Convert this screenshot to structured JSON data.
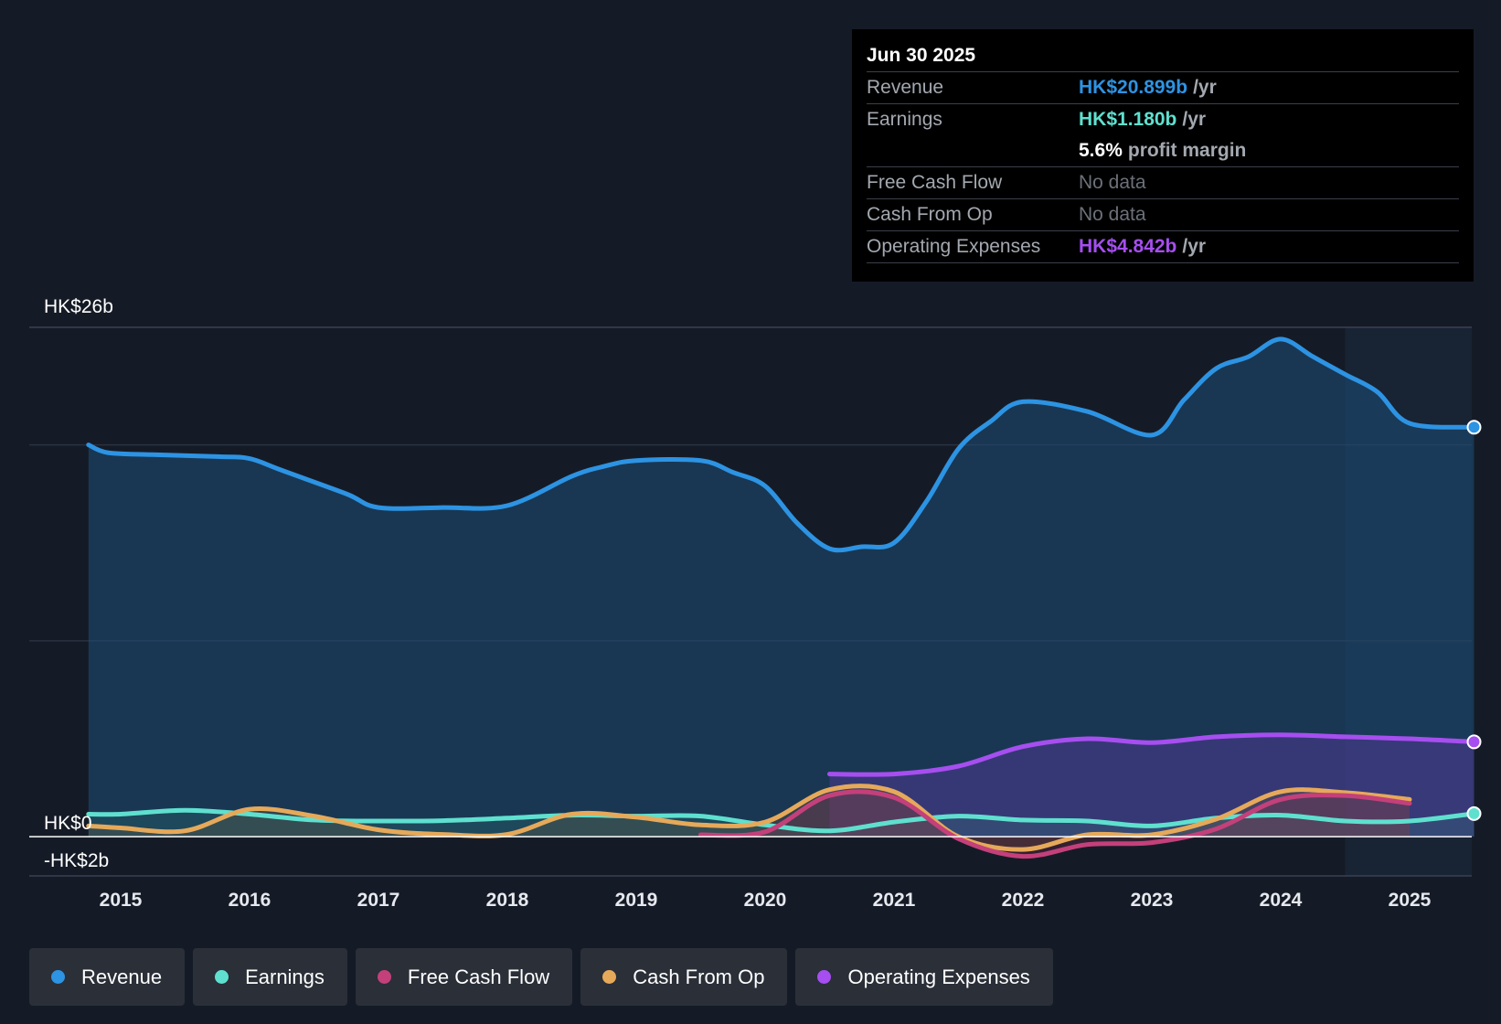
{
  "chart_data": {
    "type": "area",
    "currency": "HK$",
    "y_axis": {
      "top_label": "HK$26b",
      "zero_label": "HK$0",
      "bottom_label": "-HK$2b",
      "ylim": [
        -2,
        26
      ],
      "gridlines": [
        20,
        10
      ]
    },
    "x_axis": {
      "tick_labels": [
        "2015",
        "2016",
        "2017",
        "2018",
        "2019",
        "2020",
        "2021",
        "2022",
        "2023",
        "2024",
        "2025"
      ],
      "xlim": [
        2014.55,
        2025.5
      ]
    },
    "forecast_band_start": 2024.5,
    "series": [
      {
        "name": "Revenue",
        "color": "#2d93e3",
        "fill": "#1e4f78",
        "fill_opacity": 0.55,
        "end_marker": true,
        "points": [
          [
            2014.75,
            20.0
          ],
          [
            2014.9,
            19.6
          ],
          [
            2015.25,
            19.5
          ],
          [
            2015.75,
            19.4
          ],
          [
            2016.0,
            19.3
          ],
          [
            2016.25,
            18.7
          ],
          [
            2016.75,
            17.5
          ],
          [
            2017.0,
            16.8
          ],
          [
            2017.5,
            16.8
          ],
          [
            2018.0,
            16.9
          ],
          [
            2018.5,
            18.4
          ],
          [
            2018.75,
            18.9
          ],
          [
            2019.0,
            19.2
          ],
          [
            2019.5,
            19.2
          ],
          [
            2019.75,
            18.6
          ],
          [
            2020.0,
            17.9
          ],
          [
            2020.25,
            16.0
          ],
          [
            2020.5,
            14.7
          ],
          [
            2020.75,
            14.8
          ],
          [
            2021.0,
            15.0
          ],
          [
            2021.25,
            17.1
          ],
          [
            2021.5,
            19.8
          ],
          [
            2021.75,
            21.2
          ],
          [
            2022.0,
            22.2
          ],
          [
            2022.5,
            21.7
          ],
          [
            2023.0,
            20.5
          ],
          [
            2023.25,
            22.3
          ],
          [
            2023.5,
            23.9
          ],
          [
            2023.75,
            24.5
          ],
          [
            2024.0,
            25.4
          ],
          [
            2024.25,
            24.5
          ],
          [
            2024.5,
            23.6
          ],
          [
            2024.75,
            22.7
          ],
          [
            2025.0,
            21.1
          ],
          [
            2025.5,
            20.9
          ]
        ]
      },
      {
        "name": "Operating Expenses",
        "color": "#a64ef0",
        "fill": "#5b3aa0",
        "fill_opacity": 0.45,
        "end_marker": true,
        "points": [
          [
            2020.5,
            3.2
          ],
          [
            2021.0,
            3.2
          ],
          [
            2021.5,
            3.6
          ],
          [
            2022.0,
            4.6
          ],
          [
            2022.5,
            5.0
          ],
          [
            2023.0,
            4.8
          ],
          [
            2023.5,
            5.1
          ],
          [
            2024.0,
            5.2
          ],
          [
            2024.5,
            5.1
          ],
          [
            2025.0,
            5.0
          ],
          [
            2025.5,
            4.84
          ]
        ]
      },
      {
        "name": "Earnings",
        "color": "#5fe0cf",
        "fill": "#2e7d73",
        "fill_opacity": 0.25,
        "end_marker": true,
        "points": [
          [
            2014.75,
            1.15
          ],
          [
            2015.0,
            1.15
          ],
          [
            2015.5,
            1.35
          ],
          [
            2016.0,
            1.15
          ],
          [
            2016.5,
            0.85
          ],
          [
            2017.0,
            0.8
          ],
          [
            2017.5,
            0.82
          ],
          [
            2018.0,
            0.95
          ],
          [
            2018.5,
            1.1
          ],
          [
            2019.0,
            1.05
          ],
          [
            2019.5,
            1.05
          ],
          [
            2020.0,
            0.6
          ],
          [
            2020.5,
            0.3
          ],
          [
            2021.0,
            0.75
          ],
          [
            2021.5,
            1.05
          ],
          [
            2022.0,
            0.85
          ],
          [
            2022.5,
            0.8
          ],
          [
            2023.0,
            0.55
          ],
          [
            2023.5,
            0.95
          ],
          [
            2024.0,
            1.1
          ],
          [
            2024.5,
            0.8
          ],
          [
            2025.0,
            0.8
          ],
          [
            2025.5,
            1.18
          ]
        ]
      },
      {
        "name": "Cash From Op",
        "color": "#e6a95a",
        "fill": "#6a5a3e",
        "fill_opacity": 0.3,
        "end_marker": false,
        "points": [
          [
            2014.75,
            0.55
          ],
          [
            2015.0,
            0.45
          ],
          [
            2015.5,
            0.3
          ],
          [
            2016.0,
            1.4
          ],
          [
            2016.5,
            1.05
          ],
          [
            2017.0,
            0.35
          ],
          [
            2017.5,
            0.12
          ],
          [
            2018.0,
            0.12
          ],
          [
            2018.5,
            1.15
          ],
          [
            2019.0,
            1.0
          ],
          [
            2019.5,
            0.6
          ],
          [
            2020.0,
            0.75
          ],
          [
            2020.5,
            2.4
          ],
          [
            2021.0,
            2.3
          ],
          [
            2021.5,
            0.0
          ],
          [
            2022.0,
            -0.65
          ],
          [
            2022.5,
            0.1
          ],
          [
            2023.0,
            0.1
          ],
          [
            2023.5,
            0.9
          ],
          [
            2024.0,
            2.3
          ],
          [
            2024.5,
            2.25
          ],
          [
            2025.0,
            1.9
          ]
        ]
      },
      {
        "name": "Free Cash Flow",
        "color": "#c4407a",
        "fill": "#7a3050",
        "fill_opacity": 0.3,
        "end_marker": false,
        "points": [
          [
            2019.5,
            0.1
          ],
          [
            2020.0,
            0.25
          ],
          [
            2020.5,
            2.1
          ],
          [
            2021.0,
            2.0
          ],
          [
            2021.5,
            -0.1
          ],
          [
            2022.0,
            -1.0
          ],
          [
            2022.5,
            -0.4
          ],
          [
            2023.0,
            -0.3
          ],
          [
            2023.5,
            0.4
          ],
          [
            2024.0,
            1.9
          ],
          [
            2024.5,
            2.1
          ],
          [
            2025.0,
            1.7
          ]
        ]
      }
    ],
    "tooltip": {
      "date": "Jun 30 2025",
      "revenue_label": "Revenue",
      "revenue_value": "HK$20.899b",
      "revenue_unit": "/yr",
      "earnings_label": "Earnings",
      "earnings_value": "HK$1.180b",
      "earnings_unit": "/yr",
      "margin_value": "5.6%",
      "margin_text": "profit margin",
      "fcf_label": "Free Cash Flow",
      "fcf_value": "No data",
      "cfo_label": "Cash From Op",
      "cfo_value": "No data",
      "opex_label": "Operating Expenses",
      "opex_value": "HK$4.842b",
      "opex_unit": "/yr"
    },
    "legend": [
      {
        "label": "Revenue",
        "color": "#2d93e3"
      },
      {
        "label": "Earnings",
        "color": "#5fe0cf"
      },
      {
        "label": "Free Cash Flow",
        "color": "#c4407a"
      },
      {
        "label": "Cash From Op",
        "color": "#e6a95a"
      },
      {
        "label": "Operating Expenses",
        "color": "#a64ef0"
      }
    ]
  }
}
